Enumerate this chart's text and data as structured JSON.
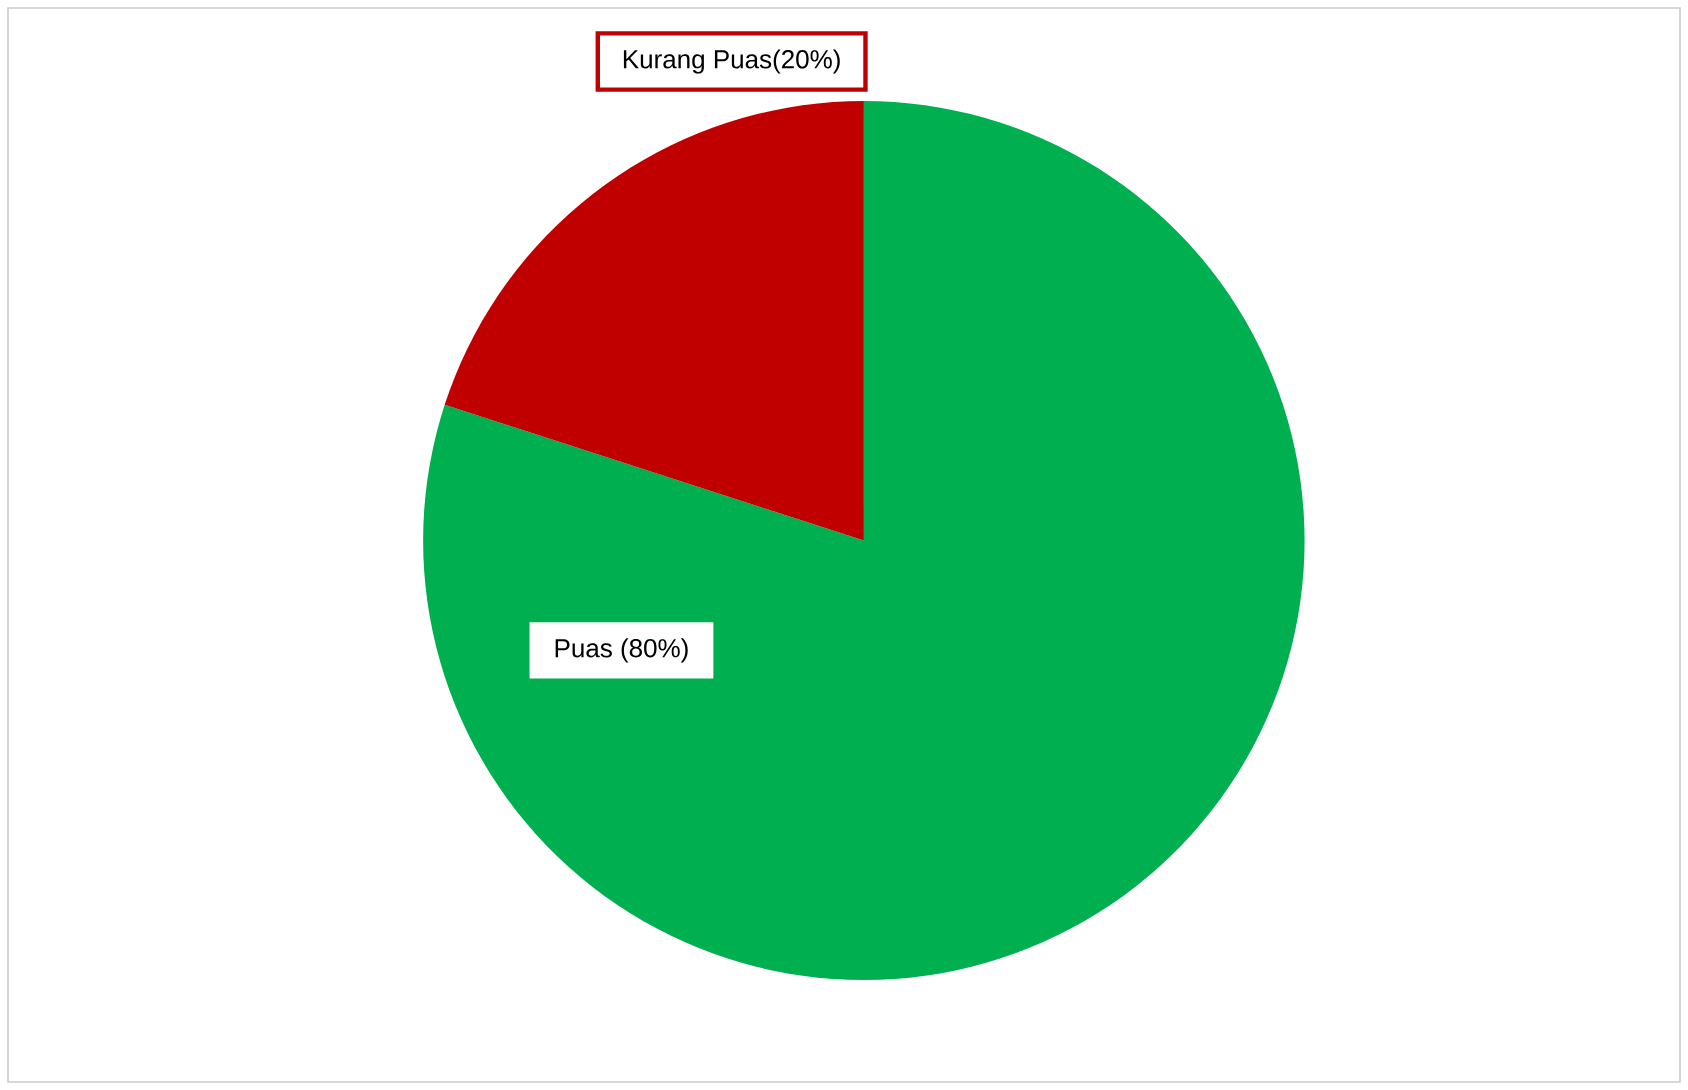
{
  "chart_data": {
    "type": "pie",
    "categories": [
      "Puas (80%)",
      "Kurang Puas(20%)"
    ],
    "values": [
      80,
      20
    ],
    "colors": [
      "#00b050",
      "#c00000"
    ]
  }
}
